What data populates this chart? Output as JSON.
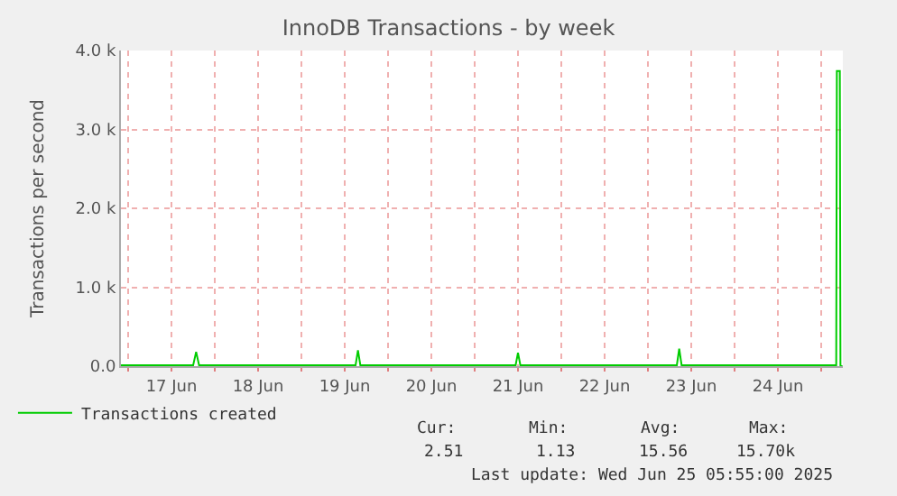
{
  "chart_data": {
    "type": "line",
    "title": "InnoDB Transactions - by week",
    "ylabel": "Transactions per second",
    "xlim": [
      "2025-06-16T22:00",
      "2025-06-25T06:00"
    ],
    "xticks": [
      {
        "value": "2025-06-17T00:00",
        "label": null
      },
      {
        "value": "2025-06-17T12:00",
        "label": "17 Jun"
      },
      {
        "value": "2025-06-18T00:00",
        "label": null
      },
      {
        "value": "2025-06-18T12:00",
        "label": "18 Jun"
      },
      {
        "value": "2025-06-19T00:00",
        "label": null
      },
      {
        "value": "2025-06-19T12:00",
        "label": "19 Jun"
      },
      {
        "value": "2025-06-20T00:00",
        "label": null
      },
      {
        "value": "2025-06-20T12:00",
        "label": "20 Jun"
      },
      {
        "value": "2025-06-21T00:00",
        "label": null
      },
      {
        "value": "2025-06-21T12:00",
        "label": "21 Jun"
      },
      {
        "value": "2025-06-22T00:00",
        "label": null
      },
      {
        "value": "2025-06-22T12:00",
        "label": "22 Jun"
      },
      {
        "value": "2025-06-23T00:00",
        "label": null
      },
      {
        "value": "2025-06-23T12:00",
        "label": "23 Jun"
      },
      {
        "value": "2025-06-24T00:00",
        "label": null
      },
      {
        "value": "2025-06-24T12:00",
        "label": "24 Jun"
      },
      {
        "value": "2025-06-25T00:00",
        "label": null
      }
    ],
    "ylim": [
      0,
      4000
    ],
    "yticks": [
      {
        "value": 0,
        "label": "0.0"
      },
      {
        "value": 1000,
        "label": "1.0 k"
      },
      {
        "value": 2000,
        "label": "2.0 k"
      },
      {
        "value": 3000,
        "label": "3.0 k"
      },
      {
        "value": 4000,
        "label": "4.0 k"
      }
    ],
    "grid": true,
    "legend": "bottom left",
    "series": [
      {
        "name": "Transactions created",
        "color": "#00cc00",
        "x": [
          "2025-06-16T22:00",
          "2025-06-17T18:00",
          "2025-06-17T18:50",
          "2025-06-17T19:40",
          "2025-06-19T15:00",
          "2025-06-19T15:40",
          "2025-06-19T16:20",
          "2025-06-21T11:20",
          "2025-06-21T12:00",
          "2025-06-21T12:40",
          "2025-06-23T08:00",
          "2025-06-23T08:40",
          "2025-06-23T09:20",
          "2025-06-25T04:10",
          "2025-06-25T04:20",
          "2025-06-25T05:10",
          "2025-06-25T05:20",
          "2025-06-25T05:55"
        ],
        "values": [
          10,
          10,
          180,
          10,
          10,
          200,
          10,
          10,
          170,
          10,
          10,
          220,
          10,
          10,
          3740,
          3740,
          0,
          0
        ]
      }
    ],
    "annotations": [
      "Cur:",
      "Min:",
      "Avg:",
      "Max:",
      "2.51",
      "1.13",
      "15.56",
      "15.70k",
      "Last update: Wed Jun 25 05:55:00 2025"
    ]
  }
}
